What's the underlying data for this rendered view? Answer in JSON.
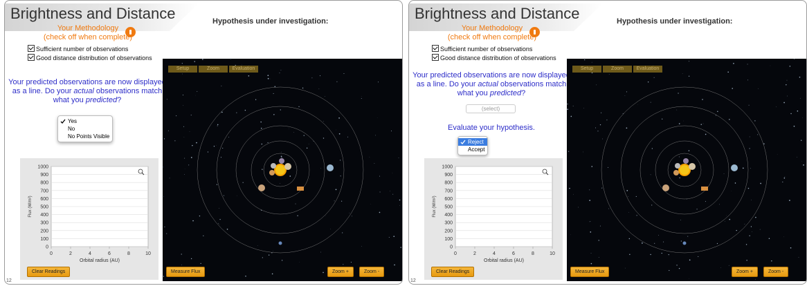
{
  "panels": [
    {
      "title": "Brightness and Distance",
      "hypothesis_label": "Hypothesis under investigation:",
      "methodology": {
        "title": "Your Methodology",
        "subtitle": "(check off when complete)",
        "checks": [
          "Sufficient number of observations",
          "Good distance distribution of observations"
        ]
      },
      "question": {
        "before": "Your predicted observations are now displayed as a line.  Do your ",
        "actual": "actual",
        "middle": " observations match what you ",
        "predicted": "predicted",
        "after": "?"
      },
      "dropdown": {
        "options": [
          "Yes",
          "No",
          "No Points Visible"
        ],
        "selected": 0
      },
      "plot": {
        "ylabel": "Flux (W/m²)",
        "xlabel": "Orbital radius (AU)",
        "ylim": [
          0,
          1000
        ],
        "yticks": [
          0,
          100,
          200,
          300,
          400,
          500,
          600,
          700,
          800,
          900,
          1000
        ],
        "xlim": [
          0,
          10
        ],
        "xticks": [
          0,
          2,
          4,
          6,
          8,
          10
        ]
      },
      "tabs": [
        "Setup",
        "Zoom",
        "Evaluation"
      ],
      "buttons": {
        "clear": "Clear Readings",
        "measure": "Measure Flux",
        "zoom_in": "Zoom +",
        "zoom_out": "Zoom -"
      },
      "page_number": "12"
    },
    {
      "title": "Brightness and Distance",
      "hypothesis_label": "Hypothesis under investigation:",
      "methodology": {
        "title": "Your Methodology",
        "subtitle": "(check off when complete)",
        "checks": [
          "Sufficient number of observations",
          "Good distance distribution of observations"
        ]
      },
      "question": {
        "before": "Your predicted observations are now displayed as a line.  Do your ",
        "actual": "actual",
        "middle": " observations match what you ",
        "predicted": "predicted",
        "after": "?"
      },
      "select_placeholder": "(select)",
      "evaluate_label": "Evaluate your hypothesis.",
      "dropdown": {
        "options": [
          "Reject",
          "Accept"
        ],
        "selected": 0
      },
      "plot": {
        "ylabel": "Flux (W/m²)",
        "xlabel": "Orbital radius (AU)",
        "ylim": [
          0,
          1000
        ],
        "yticks": [
          0,
          100,
          200,
          300,
          400,
          500,
          600,
          700,
          800,
          900,
          1000
        ],
        "xlim": [
          0,
          10
        ],
        "xticks": [
          0,
          2,
          4,
          6,
          8,
          10
        ]
      },
      "tabs": [
        "Setup",
        "Zoom",
        "Evaluation"
      ],
      "buttons": {
        "clear": "Clear Readings",
        "measure": "Measure Flux",
        "zoom_in": "Zoom +",
        "zoom_out": "Zoom -"
      },
      "page_number": "12"
    }
  ]
}
